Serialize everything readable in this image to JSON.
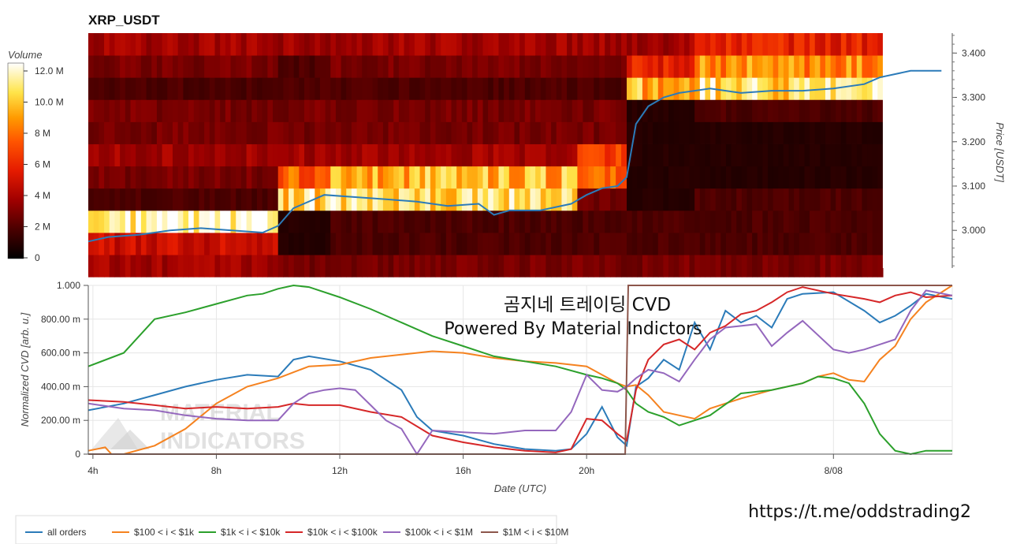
{
  "watermark": {
    "line1": "MATERIAL",
    "line2": "INDICATORS"
  },
  "overlay": {
    "line1": "곰지네 트레이딩 CVD",
    "line2": "Powered By Material Indictors"
  },
  "footer_url": "https://t.me/oddstrading2",
  "colors": {
    "all_orders": "#2b7bb9",
    "r100_1k": "#f5821f",
    "r1k_10k": "#2ca02c",
    "r10k_100k": "#d62728",
    "r100k_1m": "#9467bd",
    "r1m_10m": "#8c564b"
  },
  "chart_data": [
    {
      "type": "heatmap",
      "title": "XRP_USDT",
      "colorbar": {
        "label": "Volume",
        "ticks": [
          "12.0 M",
          "10.0 M",
          "8 M",
          "6 M",
          "4 M",
          "2 M",
          "0"
        ],
        "range": [
          0,
          13
        ]
      },
      "y_right_label": "Price [USDT]",
      "y_ticks": [
        "3.400",
        "3.300",
        "3.200",
        "3.100",
        "3.000"
      ],
      "ylim": [
        2.915,
        3.445
      ],
      "xlim": [
        3.85,
        31.85
      ],
      "price_bins": [
        2.92,
        2.97,
        3.02,
        3.07,
        3.12,
        3.17,
        3.22,
        3.27,
        3.32,
        3.37,
        3.42
      ],
      "columns": [
        {
          "hours": [
            3.85,
            10.0
          ],
          "volume_by_bin": [
            4,
            5,
            12.5,
            2,
            3,
            4,
            3,
            3,
            2,
            3,
            4
          ]
        },
        {
          "hours": [
            10.0,
            11.7
          ],
          "volume_by_bin": [
            3,
            1,
            1,
            11,
            8,
            4,
            3,
            3,
            2,
            2,
            4
          ]
        },
        {
          "hours": [
            11.7,
            19.7
          ],
          "volume_by_bin": [
            3,
            2,
            2,
            11,
            10,
            4,
            3,
            3,
            2,
            3,
            4
          ]
        },
        {
          "hours": [
            19.7,
            21.3
          ],
          "volume_by_bin": [
            3,
            2,
            2,
            3,
            8,
            7,
            3,
            3,
            2,
            3,
            4
          ]
        },
        {
          "hours": [
            21.3,
            23.5
          ],
          "volume_by_bin": [
            3,
            2,
            2,
            1,
            1,
            1,
            1,
            1,
            10,
            6,
            4
          ]
        },
        {
          "hours": [
            23.5,
            29.6
          ],
          "volume_by_bin": [
            3,
            2,
            2,
            2,
            1,
            1,
            1,
            2,
            11,
            9,
            6
          ]
        }
      ],
      "price_line": {
        "hours": [
          3.85,
          4.5,
          5.5,
          6.5,
          7.5,
          8.5,
          9.5,
          10.0,
          10.5,
          11.5,
          12.5,
          13.5,
          14.5,
          15.5,
          16.5,
          17.0,
          17.5,
          18.5,
          19.5,
          20.0,
          20.5,
          21.0,
          21.3,
          21.6,
          22.0,
          22.5,
          23.0,
          24.0,
          25.0,
          26.0,
          27.0,
          28.0,
          29.0,
          29.5,
          30.5,
          31.5
        ],
        "price": [
          2.975,
          2.985,
          2.99,
          3.0,
          3.005,
          3.0,
          2.995,
          3.01,
          3.05,
          3.08,
          3.075,
          3.07,
          3.065,
          3.055,
          3.06,
          3.035,
          3.045,
          3.045,
          3.06,
          3.08,
          3.095,
          3.1,
          3.12,
          3.24,
          3.28,
          3.3,
          3.31,
          3.32,
          3.31,
          3.315,
          3.315,
          3.32,
          3.33,
          3.345,
          3.36,
          3.36
        ]
      }
    },
    {
      "type": "line",
      "xlabel": "Date (UTC)",
      "ylabel": "Normalized CVD [arb. u.]",
      "x_ticks": [
        {
          "h": 4,
          "label": "4h"
        },
        {
          "h": 8,
          "label": "8h"
        },
        {
          "h": 12,
          "label": "12h"
        },
        {
          "h": 16,
          "label": "16h"
        },
        {
          "h": 20,
          "label": "20h"
        },
        {
          "h": 28,
          "label": "8/08"
        }
      ],
      "y_ticks": [
        {
          "v": 0,
          "label": "0"
        },
        {
          "v": 200,
          "label": "200.00 m"
        },
        {
          "v": 400,
          "label": "400.00 m"
        },
        {
          "v": 600,
          "label": "600.00 m"
        },
        {
          "v": 800,
          "label": "800.00 m"
        },
        {
          "v": 1000,
          "label": "1.000"
        }
      ],
      "xlim": [
        3.85,
        31.85
      ],
      "ylim": [
        0,
        1000
      ],
      "series": [
        {
          "name": "all orders",
          "key": "all_orders",
          "x": [
            3.85,
            5,
            6,
            7,
            8,
            9,
            10,
            10.5,
            11,
            12,
            13,
            14,
            14.5,
            15,
            16,
            17,
            18,
            19,
            19.5,
            20,
            20.5,
            21,
            21.3,
            21.6,
            22,
            22.5,
            23,
            23.5,
            24,
            24.5,
            25,
            25.5,
            26,
            26.5,
            27,
            28,
            29,
            29.5,
            30,
            30.5,
            31,
            31.85
          ],
          "y": [
            260,
            300,
            350,
            400,
            440,
            470,
            460,
            560,
            580,
            550,
            500,
            380,
            220,
            140,
            110,
            60,
            30,
            20,
            30,
            120,
            280,
            100,
            50,
            400,
            450,
            560,
            500,
            780,
            620,
            850,
            780,
            820,
            750,
            920,
            950,
            960,
            850,
            780,
            820,
            880,
            950,
            920
          ]
        },
        {
          "name": "$100 < i < $1k",
          "key": "r100_1k",
          "x": [
            3.85,
            4.4,
            4.6,
            5,
            6,
            7,
            8,
            9,
            10,
            11,
            12,
            13,
            14,
            15,
            16,
            17,
            18,
            19,
            20,
            20.5,
            21,
            21.3,
            21.6,
            22,
            22.5,
            23,
            23.5,
            24,
            25,
            26,
            27,
            27.5,
            28,
            28.5,
            29,
            29.5,
            30,
            30.5,
            31,
            31.85
          ],
          "y": [
            20,
            40,
            0,
            0,
            50,
            150,
            300,
            400,
            450,
            520,
            530,
            570,
            590,
            610,
            600,
            570,
            550,
            540,
            520,
            470,
            420,
            400,
            410,
            350,
            250,
            230,
            210,
            270,
            330,
            380,
            420,
            460,
            480,
            440,
            430,
            560,
            640,
            800,
            900,
            1000
          ]
        },
        {
          "name": "$1k < i < $10k",
          "key": "r1k_10k",
          "x": [
            3.85,
            5,
            5.5,
            6,
            7,
            8,
            9,
            9.5,
            10,
            10.5,
            11,
            12,
            13,
            14,
            15,
            16,
            17,
            18,
            19,
            20,
            20.5,
            21,
            21.3,
            21.6,
            22,
            22.5,
            23,
            23.5,
            24,
            25,
            26,
            27,
            27.5,
            28,
            28.5,
            29,
            29.5,
            30,
            30.5,
            31,
            31.85
          ],
          "y": [
            520,
            600,
            700,
            800,
            840,
            890,
            940,
            950,
            980,
            1000,
            990,
            930,
            860,
            780,
            700,
            640,
            580,
            550,
            520,
            470,
            450,
            420,
            380,
            300,
            250,
            220,
            170,
            200,
            230,
            360,
            380,
            420,
            460,
            450,
            420,
            300,
            120,
            20,
            0,
            20,
            20
          ]
        },
        {
          "name": "$10k < i < $100k",
          "key": "r10k_100k",
          "x": [
            3.85,
            5,
            6,
            7,
            8,
            9,
            10,
            10.5,
            11,
            12,
            13,
            14,
            15,
            16,
            17,
            18,
            19,
            19.5,
            20,
            20.5,
            21,
            21.3,
            21.6,
            22,
            22.5,
            23,
            23.5,
            24,
            24.5,
            25,
            25.5,
            26,
            26.5,
            27,
            28,
            29,
            29.5,
            30,
            30.5,
            31,
            31.85
          ],
          "y": [
            320,
            310,
            290,
            270,
            280,
            270,
            280,
            300,
            290,
            290,
            250,
            220,
            110,
            70,
            40,
            20,
            10,
            30,
            210,
            200,
            120,
            80,
            380,
            560,
            650,
            680,
            620,
            720,
            760,
            830,
            850,
            900,
            960,
            990,
            950,
            920,
            900,
            940,
            960,
            930,
            940
          ]
        },
        {
          "name": "$100k < i < $1M",
          "key": "r100k_1m",
          "x": [
            3.85,
            5,
            6,
            7,
            8,
            9,
            10,
            10.5,
            11,
            11.5,
            12,
            12.5,
            13,
            13.5,
            14,
            14.5,
            15,
            16,
            17,
            18,
            19,
            19.5,
            20,
            20.5,
            21,
            21.3,
            21.6,
            22,
            22.5,
            23,
            23.5,
            24,
            24.5,
            25,
            25.5,
            26,
            26.5,
            27,
            28,
            28.5,
            29,
            29.5,
            30,
            30.5,
            31,
            31.85
          ],
          "y": [
            300,
            270,
            260,
            230,
            210,
            200,
            200,
            300,
            360,
            380,
            390,
            380,
            290,
            200,
            150,
            0,
            140,
            130,
            120,
            140,
            140,
            250,
            470,
            380,
            370,
            400,
            450,
            500,
            480,
            430,
            560,
            680,
            750,
            760,
            770,
            640,
            720,
            790,
            620,
            600,
            620,
            650,
            680,
            850,
            970,
            940
          ]
        },
        {
          "name": "$1M < i < $10M",
          "key": "r1m_10m",
          "x": [
            3.85,
            21.25,
            21.35,
            31.85
          ],
          "y": [
            0,
            0,
            1000,
            1000
          ]
        }
      ]
    }
  ]
}
